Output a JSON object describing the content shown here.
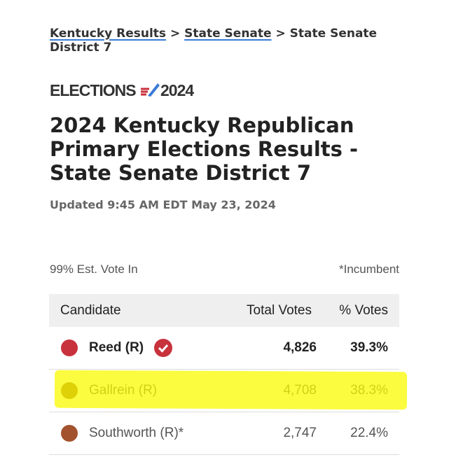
{
  "breadcrumb": {
    "items": [
      "Kentucky Results",
      "State Senate",
      "State Senate District 7"
    ],
    "separator": ">"
  },
  "logo": {
    "word": "ELECTIONS",
    "year": "2024"
  },
  "title": "2024 Kentucky Republican Primary Elections Results - State Senate District 7",
  "updated": "Updated 9:45 AM EDT May 23, 2024",
  "table": {
    "vote_in": "99% Est. Vote In",
    "incumbent_note": "*Incumbent",
    "headers": [
      "Candidate",
      "Total Votes",
      "% Votes"
    ],
    "rows": [
      {
        "name": "Reed (R)",
        "votes": "4,826",
        "pct": "39.3%",
        "color": "#c8323c",
        "winner": true
      },
      {
        "name": "Gallrein (R)",
        "votes": "4,708",
        "pct": "38.3%",
        "color": "#8c5a1e",
        "winner": false
      },
      {
        "name": "Southworth (R)*",
        "votes": "2,747",
        "pct": "22.4%",
        "color": "#a3522e",
        "winner": false
      }
    ]
  }
}
